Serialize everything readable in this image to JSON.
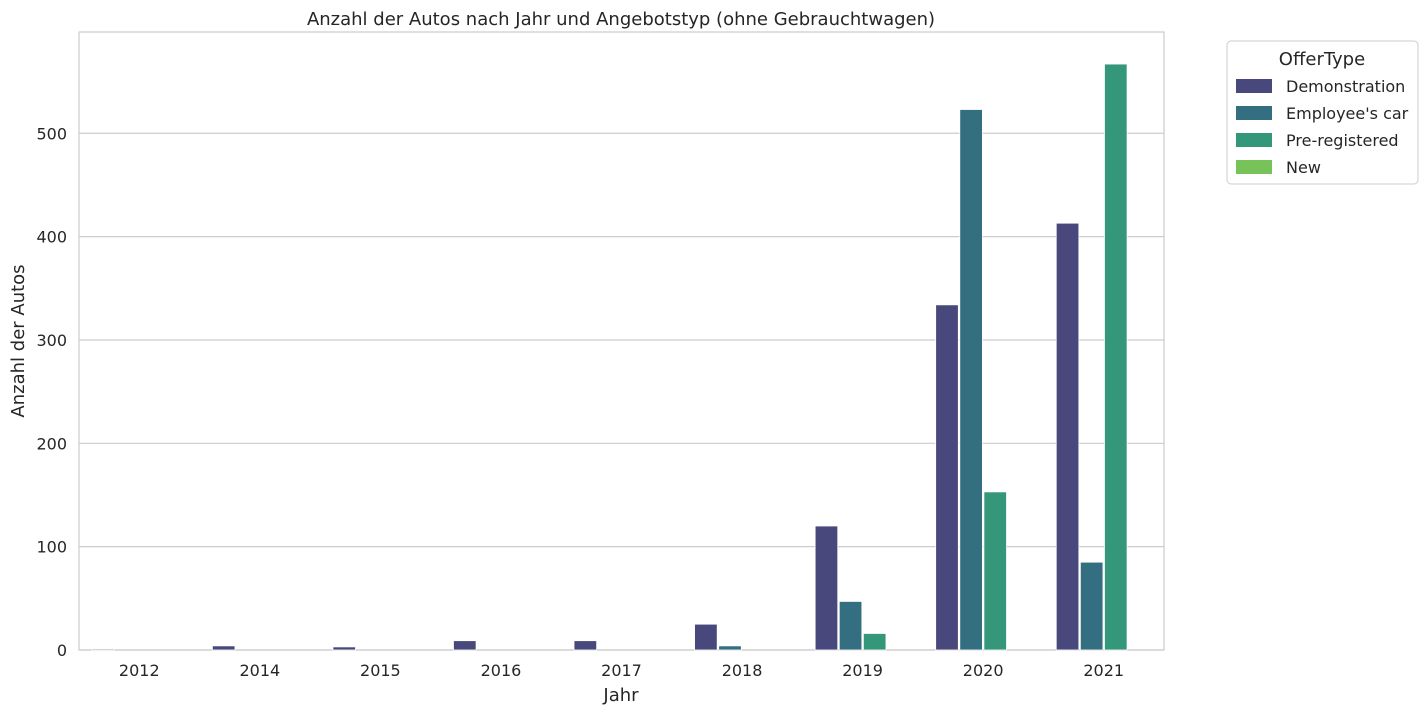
{
  "chart_data": {
    "type": "bar",
    "title": "Anzahl der Autos nach Jahr und Angebotstyp (ohne Gebrauchtwagen)",
    "xlabel": "Jahr",
    "ylabel": "Anzahl der Autos",
    "categories": [
      "2012",
      "2014",
      "2015",
      "2016",
      "2017",
      "2018",
      "2019",
      "2020",
      "2021"
    ],
    "ylim": [
      0,
      598
    ],
    "yticks": [
      0,
      100,
      200,
      300,
      400,
      500
    ],
    "grid": "horizontal",
    "legend": {
      "title": "OfferType",
      "placement": "outside-top-right"
    },
    "series": [
      {
        "name": "Demonstration",
        "color": "#48487c",
        "values": [
          1,
          4,
          3,
          9,
          9,
          25,
          120,
          334,
          413
        ]
      },
      {
        "name": "Employee's car",
        "color": "#336f80",
        "values": [
          0,
          0,
          0,
          0,
          0,
          4,
          47,
          523,
          85
        ]
      },
      {
        "name": "Pre-registered",
        "color": "#34977a",
        "values": [
          0,
          0,
          0,
          0,
          0,
          0,
          16,
          153,
          567
        ]
      },
      {
        "name": "New",
        "color": "#78c25a",
        "values": [
          0,
          0,
          0,
          0,
          0,
          0,
          0,
          0,
          0
        ]
      }
    ]
  }
}
